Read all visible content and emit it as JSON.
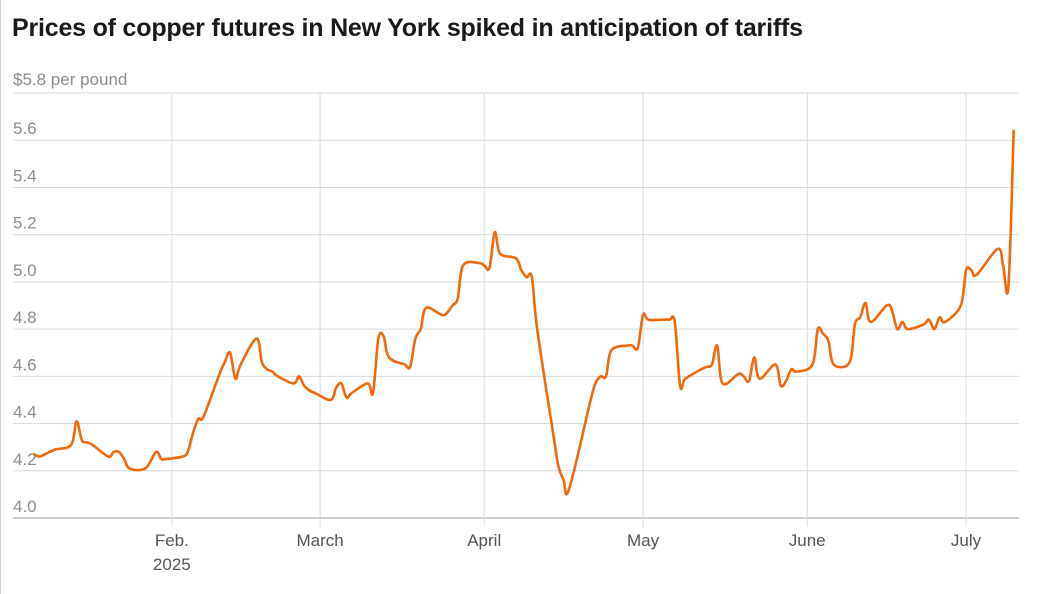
{
  "chart_data": {
    "type": "line",
    "title": "Prices of copper futures in New York spiked in anticipation of tariffs",
    "ylabel": "$5.8 per pound",
    "ylim": [
      4.0,
      5.8
    ],
    "xlim": [
      "2025-01-02",
      "2025-07-11"
    ],
    "y_ticks": [
      {
        "value": 4.0,
        "label": "4.0"
      },
      {
        "value": 4.2,
        "label": "4.2"
      },
      {
        "value": 4.4,
        "label": "4.4"
      },
      {
        "value": 4.6,
        "label": "4.6"
      },
      {
        "value": 4.8,
        "label": "4.8"
      },
      {
        "value": 5.0,
        "label": "5.0"
      },
      {
        "value": 5.2,
        "label": "5.2"
      },
      {
        "value": 5.4,
        "label": "5.4"
      },
      {
        "value": 5.6,
        "label": "5.6"
      }
    ],
    "x_ticks": [
      {
        "date": "2025-02-01",
        "label": "Feb.",
        "sublabel": "2025"
      },
      {
        "date": "2025-03-01",
        "label": "March"
      },
      {
        "date": "2025-04-01",
        "label": "April"
      },
      {
        "date": "2025-05-01",
        "label": "May"
      },
      {
        "date": "2025-06-01",
        "label": "June"
      },
      {
        "date": "2025-07-01",
        "label": "July"
      }
    ],
    "grid": true,
    "color": "#ef6a0f",
    "series": [
      {
        "x": [
          "2025-01-06",
          "2025-01-07",
          "2025-01-08",
          "2025-01-10",
          "2025-01-13",
          "2025-01-14",
          "2025-01-15",
          "2025-01-16",
          "2025-01-17",
          "2025-01-20",
          "2025-01-21",
          "2025-01-22",
          "2025-01-23",
          "2025-01-24",
          "2025-01-27",
          "2025-01-29",
          "2025-01-30",
          "2025-01-31",
          "2025-02-03",
          "2025-02-04",
          "2025-02-05",
          "2025-02-06",
          "2025-02-07",
          "2025-02-10",
          "2025-02-11",
          "2025-02-12",
          "2025-02-13",
          "2025-02-14",
          "2025-02-17",
          "2025-02-18",
          "2025-02-19",
          "2025-02-20",
          "2025-02-21",
          "2025-02-24",
          "2025-02-25",
          "2025-02-26",
          "2025-02-27",
          "2025-02-28",
          "2025-03-03",
          "2025-03-04",
          "2025-03-05",
          "2025-03-06",
          "2025-03-07",
          "2025-03-10",
          "2025-03-11",
          "2025-03-12",
          "2025-03-13",
          "2025-03-14",
          "2025-03-17",
          "2025-03-18",
          "2025-03-19",
          "2025-03-20",
          "2025-03-21",
          "2025-03-24",
          "2025-03-25",
          "2025-03-26",
          "2025-03-27",
          "2025-03-28",
          "2025-03-31",
          "2025-04-01",
          "2025-04-02",
          "2025-04-03",
          "2025-04-04",
          "2025-04-07",
          "2025-04-08",
          "2025-04-09",
          "2025-04-10",
          "2025-04-11",
          "2025-04-14",
          "2025-04-15",
          "2025-04-16",
          "2025-04-17",
          "2025-04-21",
          "2025-04-22",
          "2025-04-23",
          "2025-04-24",
          "2025-04-25",
          "2025-04-28",
          "2025-04-29",
          "2025-04-30",
          "2025-05-01",
          "2025-05-02",
          "2025-05-05",
          "2025-05-06",
          "2025-05-07",
          "2025-05-08",
          "2025-05-09",
          "2025-05-12",
          "2025-05-13",
          "2025-05-14",
          "2025-05-15",
          "2025-05-16",
          "2025-05-19",
          "2025-05-20",
          "2025-05-21",
          "2025-05-22",
          "2025-05-23",
          "2025-05-26",
          "2025-05-27",
          "2025-05-28",
          "2025-05-29",
          "2025-05-30",
          "2025-06-02",
          "2025-06-03",
          "2025-06-04",
          "2025-06-05",
          "2025-06-06",
          "2025-06-09",
          "2025-06-10",
          "2025-06-11",
          "2025-06-12",
          "2025-06-13",
          "2025-06-16",
          "2025-06-17",
          "2025-06-18",
          "2025-06-19",
          "2025-06-20",
          "2025-06-23",
          "2025-06-24",
          "2025-06-25",
          "2025-06-26",
          "2025-06-27",
          "2025-06-30",
          "2025-07-01",
          "2025-07-02",
          "2025-07-03",
          "2025-07-07",
          "2025-07-08",
          "2025-07-09",
          "2025-07-10"
        ],
        "y": [
          4.27,
          4.26,
          4.27,
          4.29,
          4.31,
          4.41,
          4.33,
          4.32,
          4.31,
          4.26,
          4.28,
          4.28,
          4.25,
          4.21,
          4.21,
          4.28,
          4.25,
          4.25,
          4.26,
          4.28,
          4.36,
          4.42,
          4.43,
          4.61,
          4.66,
          4.7,
          4.59,
          4.65,
          4.76,
          4.66,
          4.63,
          4.62,
          4.6,
          4.57,
          4.6,
          4.56,
          4.54,
          4.53,
          4.5,
          4.55,
          4.57,
          4.51,
          4.53,
          4.57,
          4.53,
          4.76,
          4.77,
          4.68,
          4.65,
          4.64,
          4.76,
          4.8,
          4.89,
          4.86,
          4.87,
          4.9,
          4.93,
          5.07,
          5.08,
          5.07,
          5.06,
          5.21,
          5.12,
          5.1,
          5.05,
          5.02,
          5.02,
          4.8,
          4.36,
          4.22,
          4.16,
          4.12,
          4.49,
          4.57,
          4.6,
          4.6,
          4.71,
          4.73,
          4.73,
          4.72,
          4.86,
          4.84,
          4.84,
          4.84,
          4.83,
          4.56,
          4.59,
          4.63,
          4.64,
          4.65,
          4.73,
          4.57,
          4.61,
          4.6,
          4.58,
          4.68,
          4.59,
          4.65,
          4.56,
          4.58,
          4.63,
          4.62,
          4.65,
          4.8,
          4.78,
          4.75,
          4.65,
          4.66,
          4.82,
          4.85,
          4.91,
          4.83,
          4.9,
          4.88,
          4.8,
          4.83,
          4.8,
          4.82,
          4.84,
          4.8,
          4.85,
          4.83,
          4.9,
          5.05,
          5.05,
          5.03,
          5.14,
          5.07,
          4.98,
          5.64
        ]
      }
    ]
  }
}
